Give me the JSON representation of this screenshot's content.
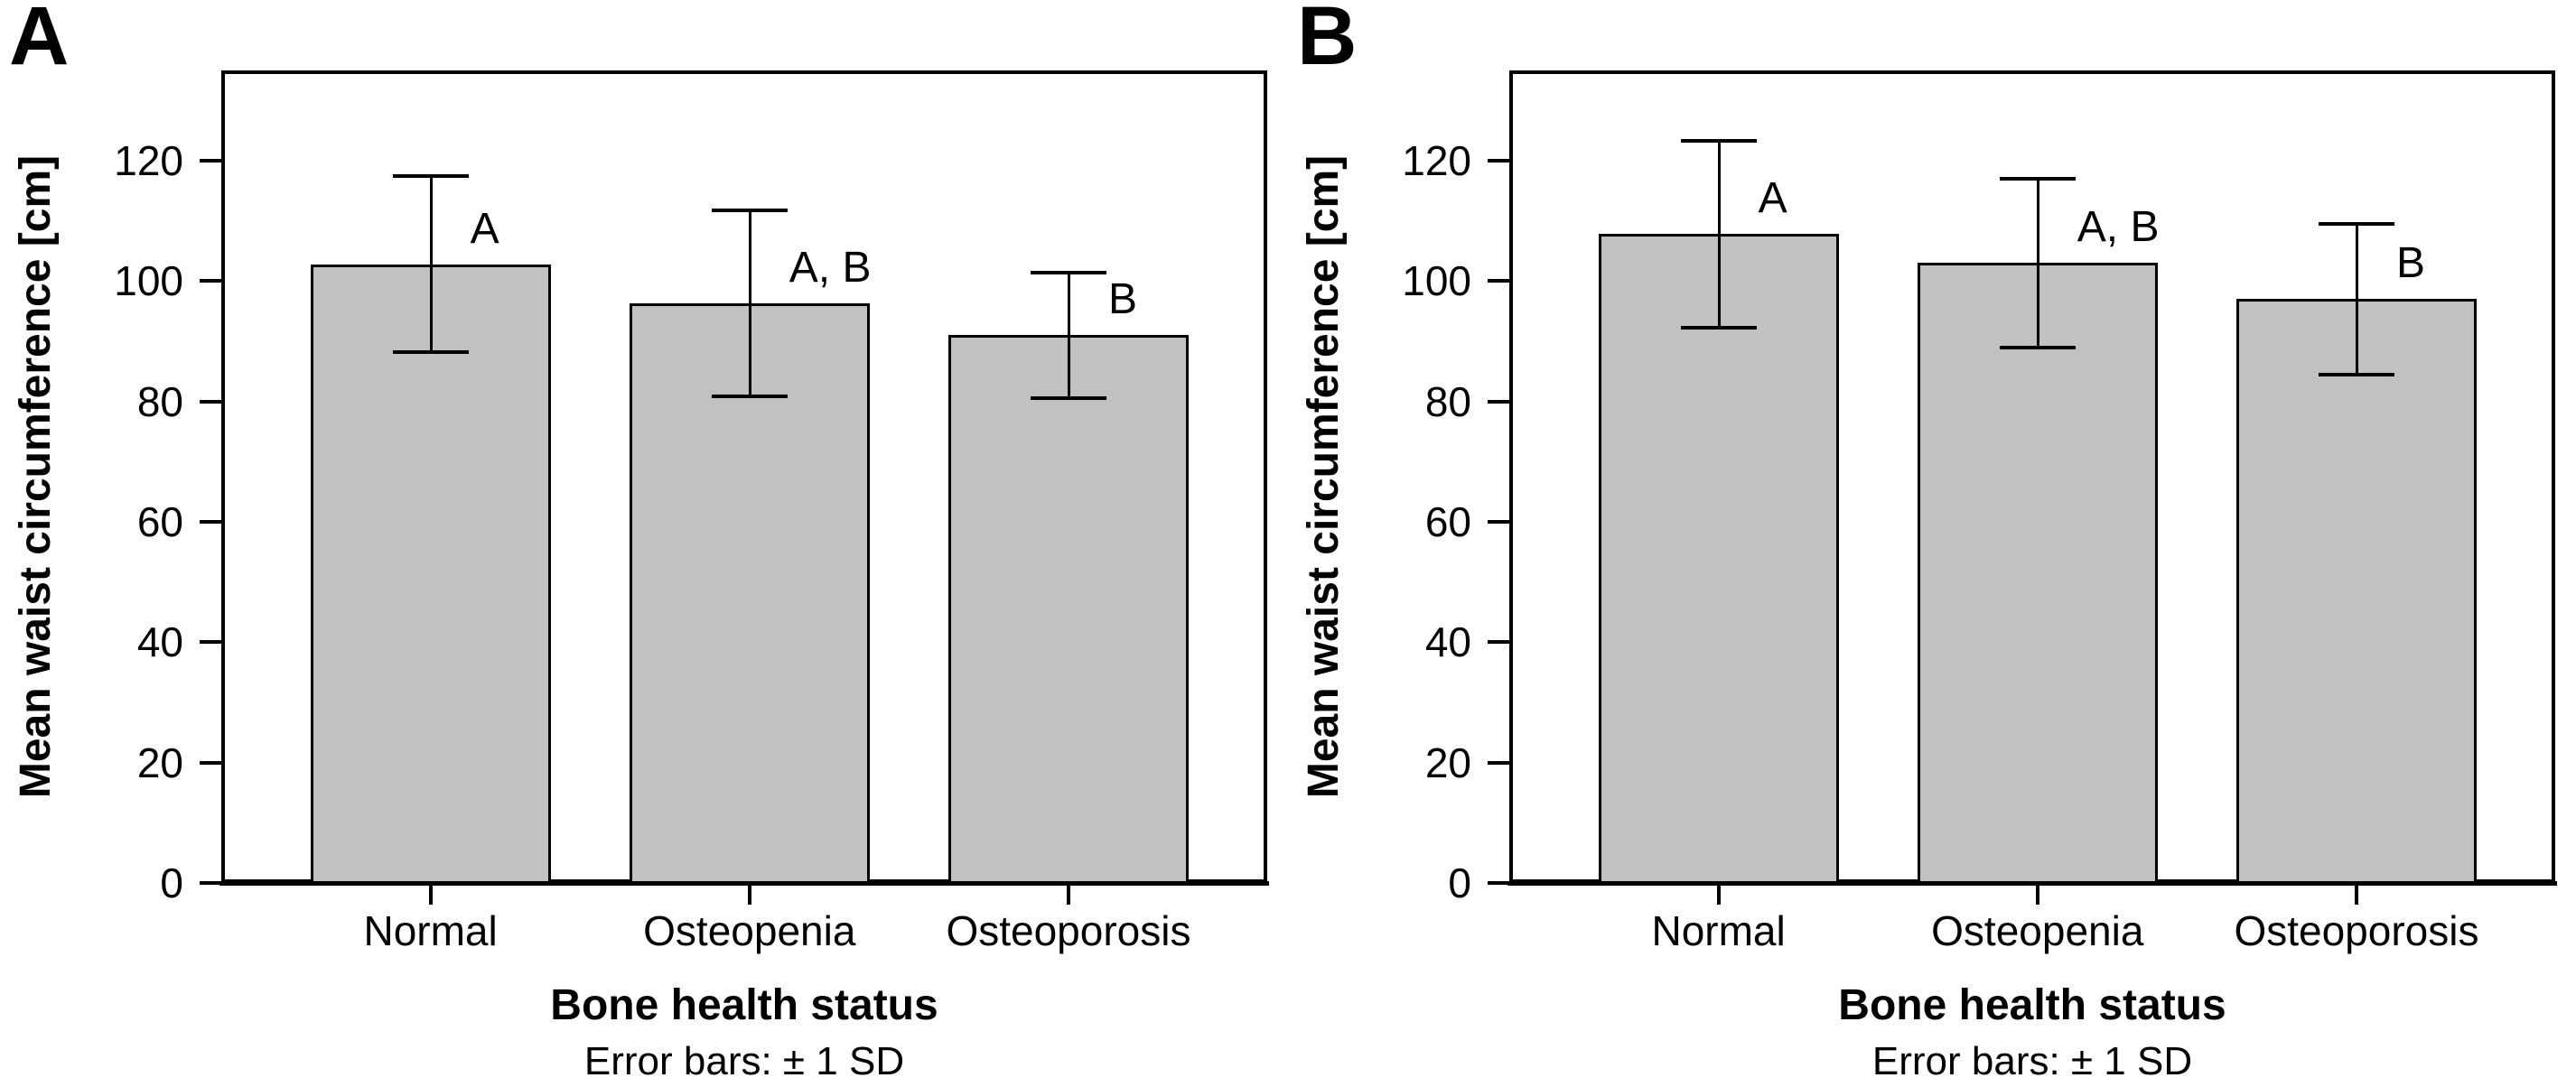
{
  "figure": {
    "background": "#ffffff",
    "text_color": "#000000",
    "panel_labels": [
      "A",
      "B"
    ]
  },
  "chart_data": [
    {
      "panel_label": "A",
      "type": "bar",
      "title": "",
      "categories": [
        "Normal",
        "Osteopenia",
        "Osteoporosis"
      ],
      "values": [
        102.8,
        96.3,
        91.0
      ],
      "sd": [
        14.6,
        15.5,
        10.4
      ],
      "error_bar_definition": "mean ± 1 SD",
      "significance_labels": [
        "A",
        "A, B",
        "B"
      ],
      "xlabel": "Bone health status",
      "ylabel": "Mean waist circumference [cm]",
      "footnote": "Error bars: ± 1 SD",
      "yticks": [
        0,
        20,
        40,
        60,
        80,
        100,
        120
      ],
      "ylim": [
        0,
        135
      ],
      "grid": false,
      "legend": "none",
      "bar_fill": "#c1c1c1",
      "bar_border": "#000000"
    },
    {
      "panel_label": "B",
      "type": "bar",
      "title": "",
      "categories": [
        "Normal",
        "Osteopenia",
        "Osteoporosis"
      ],
      "values": [
        107.8,
        103.0,
        97.0
      ],
      "sd": [
        15.5,
        14.0,
        12.5
      ],
      "error_bar_definition": "mean ± 1 SD",
      "significance_labels": [
        "A",
        "A, B",
        "B"
      ],
      "xlabel": "Bone health status",
      "ylabel": "Mean waist circumference [cm]",
      "footnote": "Error bars: ± 1 SD",
      "yticks": [
        0,
        20,
        40,
        60,
        80,
        100,
        120
      ],
      "ylim": [
        0,
        135
      ],
      "grid": false,
      "legend": "none",
      "bar_fill": "#c1c1c1",
      "bar_border": "#000000"
    }
  ]
}
